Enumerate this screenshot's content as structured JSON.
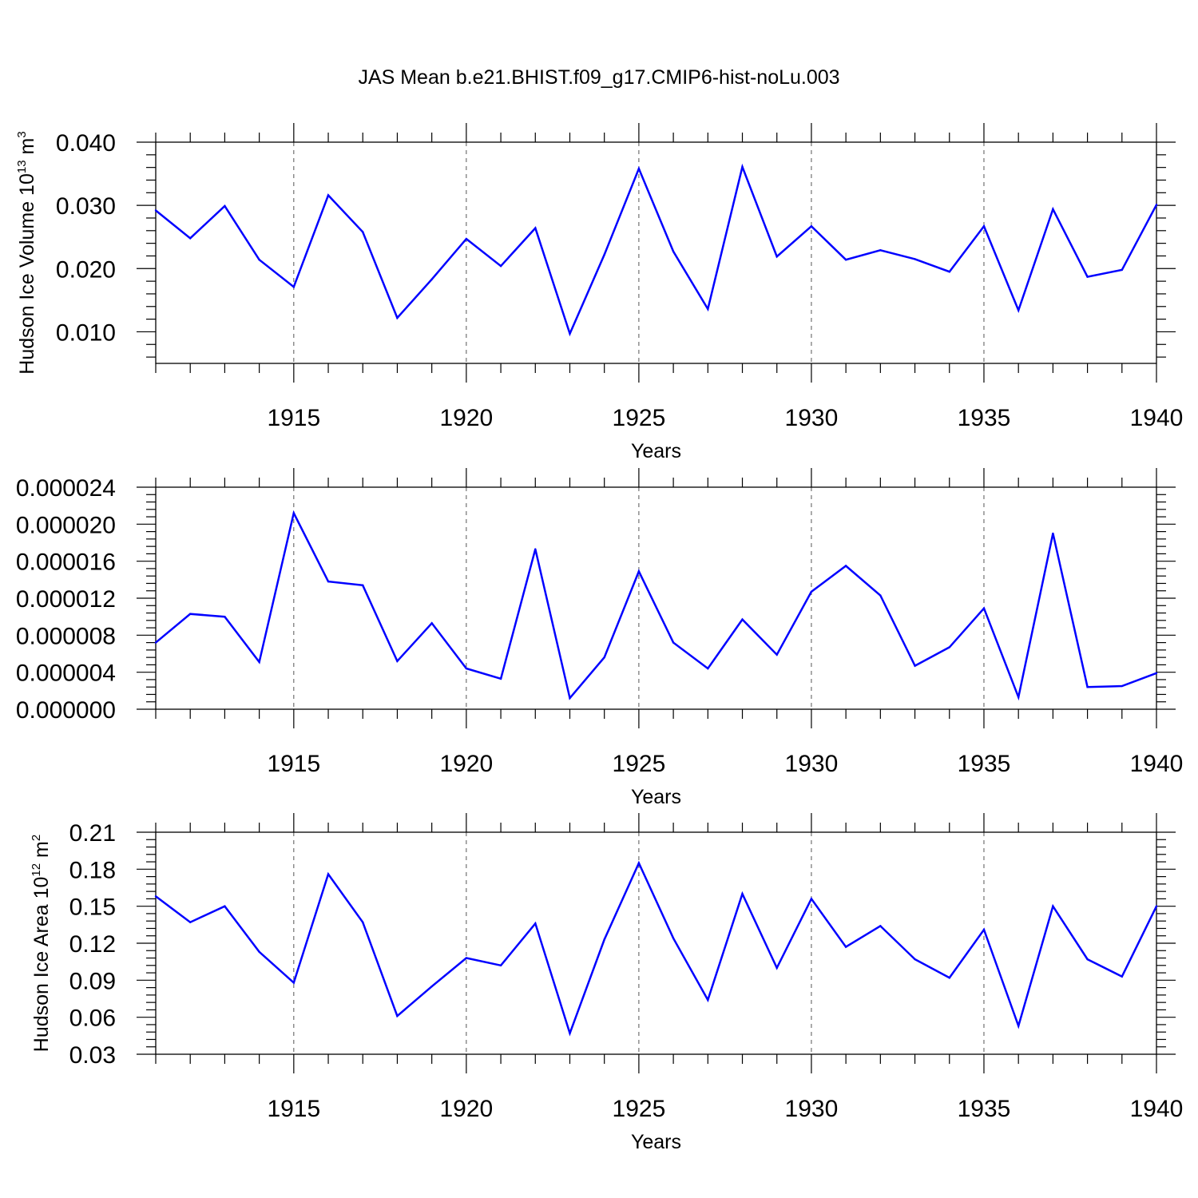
{
  "figure": {
    "title": "JAS Mean b.e21.BHIST.f09_g17.CMIP6-hist-noLu.003"
  },
  "chart_data": [
    {
      "type": "line",
      "title": "",
      "xlabel": "Years",
      "ylabel": {
        "base": "Hudson Ice Volume 10",
        "exp": "13",
        "unit": " m",
        "unit_exp": "3"
      },
      "xlim": [
        1911,
        1940
      ],
      "ylim": [
        0.005,
        0.04
      ],
      "xticks": [
        1915,
        1920,
        1925,
        1930,
        1935,
        1940
      ],
      "xtick_labels": [
        "1915",
        "1920",
        "1925",
        "1930",
        "1935",
        "1940"
      ],
      "yticks": [
        0.01,
        0.02,
        0.03,
        0.04
      ],
      "ytick_labels": [
        "0.010",
        "0.020",
        "0.030",
        "0.040"
      ],
      "grid": "dashed vertical at major x ticks",
      "line_color": "#0000ff",
      "x": [
        1911,
        1912,
        1913,
        1914,
        1915,
        1916,
        1917,
        1918,
        1919,
        1920,
        1921,
        1922,
        1923,
        1924,
        1925,
        1926,
        1927,
        1928,
        1929,
        1930,
        1931,
        1932,
        1933,
        1934,
        1935,
        1936,
        1937,
        1938,
        1939,
        1940
      ],
      "values": [
        0.0292,
        0.0248,
        0.0299,
        0.0214,
        0.0171,
        0.0316,
        0.0258,
        0.0122,
        0.0183,
        0.0247,
        0.0204,
        0.0264,
        0.0097,
        0.0222,
        0.0358,
        0.0227,
        0.0136,
        0.0361,
        0.0219,
        0.0267,
        0.0214,
        0.0229,
        0.0215,
        0.0195,
        0.0267,
        0.0134,
        0.0294,
        0.0187,
        0.0198,
        0.0301
      ]
    },
    {
      "type": "line",
      "title": "",
      "xlabel": "Years",
      "ylabel": null,
      "xlim": [
        1911,
        1940
      ],
      "ylim": [
        0,
        2.4e-05
      ],
      "xticks": [
        1915,
        1920,
        1925,
        1930,
        1935,
        1940
      ],
      "xtick_labels": [
        "1915",
        "1920",
        "1925",
        "1930",
        "1935",
        "1940"
      ],
      "yticks": [
        0,
        4e-06,
        8e-06,
        1.2e-05,
        1.6e-05,
        2e-05,
        2.4e-05
      ],
      "ytick_labels": [
        "0.000000",
        "0.000004",
        "0.000008",
        "0.000012",
        "0.000016",
        "0.000020",
        "0.000024"
      ],
      "grid": "dashed vertical at major x ticks",
      "line_color": "#0000ff",
      "x": [
        1911,
        1912,
        1913,
        1914,
        1915,
        1916,
        1917,
        1918,
        1919,
        1920,
        1921,
        1922,
        1923,
        1924,
        1925,
        1926,
        1927,
        1928,
        1929,
        1930,
        1931,
        1932,
        1933,
        1934,
        1935,
        1936,
        1937,
        1938,
        1939,
        1940
      ],
      "values": [
        7.2e-06,
        1.03e-05,
        1e-05,
        5.1e-06,
        2.12e-05,
        1.38e-05,
        1.34e-05,
        5.2e-06,
        9.3e-06,
        4.4e-06,
        3.3e-06,
        1.73e-05,
        1.2e-06,
        5.6e-06,
        1.49e-05,
        7.2e-06,
        4.4e-06,
        9.7e-06,
        5.9e-06,
        1.27e-05,
        1.55e-05,
        1.23e-05,
        4.7e-06,
        6.7e-06,
        1.09e-05,
        1.3e-06,
        1.9e-05,
        2.4e-06,
        2.5e-06,
        3.9e-06
      ]
    },
    {
      "type": "line",
      "title": "",
      "xlabel": "Years",
      "ylabel": {
        "base": "Hudson Ice Area 10",
        "exp": "12",
        "unit": " m",
        "unit_exp": "2"
      },
      "xlim": [
        1911,
        1940
      ],
      "ylim": [
        0.03,
        0.21
      ],
      "xticks": [
        1915,
        1920,
        1925,
        1930,
        1935,
        1940
      ],
      "xtick_labels": [
        "1915",
        "1920",
        "1925",
        "1930",
        "1935",
        "1940"
      ],
      "yticks": [
        0.03,
        0.06,
        0.09,
        0.12,
        0.15,
        0.18,
        0.21
      ],
      "ytick_labels": [
        "0.03",
        "0.06",
        "0.09",
        "0.12",
        "0.15",
        "0.18",
        "0.21"
      ],
      "grid": "dashed vertical at major x ticks",
      "line_color": "#0000ff",
      "x": [
        1911,
        1912,
        1913,
        1914,
        1915,
        1916,
        1917,
        1918,
        1919,
        1920,
        1921,
        1922,
        1923,
        1924,
        1925,
        1926,
        1927,
        1928,
        1929,
        1930,
        1931,
        1932,
        1933,
        1934,
        1935,
        1936,
        1937,
        1938,
        1939,
        1940
      ],
      "values": [
        0.158,
        0.137,
        0.15,
        0.113,
        0.088,
        0.176,
        0.137,
        0.061,
        0.085,
        0.108,
        0.102,
        0.136,
        0.047,
        0.123,
        0.185,
        0.124,
        0.074,
        0.16,
        0.1,
        0.156,
        0.117,
        0.134,
        0.107,
        0.092,
        0.131,
        0.053,
        0.15,
        0.107,
        0.093,
        0.15
      ]
    }
  ]
}
